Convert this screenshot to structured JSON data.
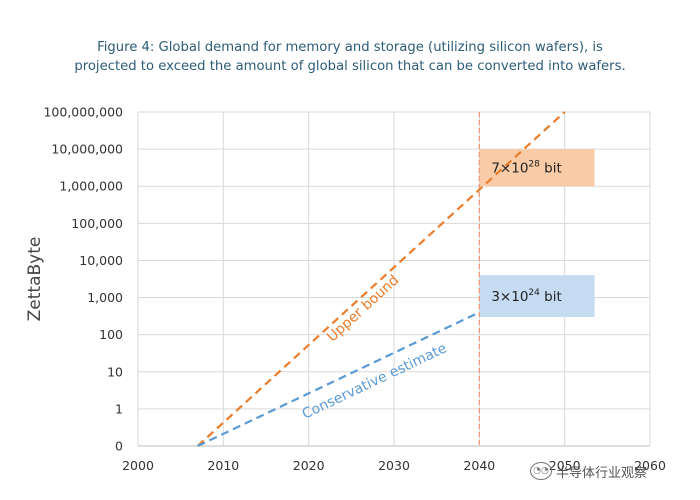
{
  "title_lines": [
    "Figure 4: Global demand for memory and storage (utilizing silicon wafers), is",
    "projected to exceed the amount of global silicon that can be converted into wafers."
  ],
  "watermark": {
    "text": "半导体行业观察"
  },
  "chart_data": {
    "type": "line",
    "ylabel": "ZettaByte",
    "xlabel": "",
    "y_scale": "log",
    "x_ticks": [
      "2000",
      "2010",
      "2020",
      "2030",
      "2040",
      "2050",
      "2060"
    ],
    "xlim": [
      2000,
      2060
    ],
    "y_ticks": [
      "0",
      "1",
      "10",
      "100",
      "1,000",
      "10,000",
      "100,000",
      "1,000,000",
      "10,000,000",
      "100,000,000"
    ],
    "grid": true,
    "series": [
      {
        "name": "Upper bound",
        "color": "#ea7d2c",
        "dashed": true,
        "points": [
          [
            2007,
            0.1
          ],
          [
            2050,
            100000000
          ]
        ]
      },
      {
        "name": "Conservative estimate",
        "color": "#5b9bd5",
        "dashed": true,
        "points": [
          [
            2007,
            0.1
          ],
          [
            2040,
            400
          ]
        ]
      }
    ],
    "reference_line": {
      "x": 2040,
      "color": "#ee9977"
    },
    "annotations": [
      {
        "mantissa": "7×10",
        "exponent": "28",
        "unit": " bit",
        "fill": "#f9cba6",
        "x_range": [
          2040,
          2053.5
        ],
        "y_range": [
          1000000,
          10000000
        ]
      },
      {
        "mantissa": "3×10",
        "exponent": "24",
        "unit": " bit",
        "fill": "#c4dbf2",
        "x_range": [
          2040,
          2053.5
        ],
        "y_range": [
          300,
          4000
        ]
      }
    ]
  }
}
